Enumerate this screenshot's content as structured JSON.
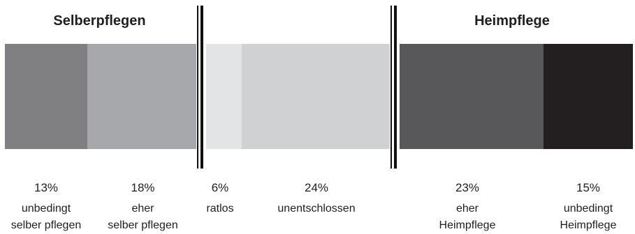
{
  "chart_data": {
    "type": "bar",
    "orientation": "horizontal-stacked",
    "groups": [
      {
        "title": "Selberpflegen",
        "segments": [
          0,
          1
        ]
      },
      {
        "title": "Heimpflege",
        "segments": [
          4,
          5
        ]
      }
    ],
    "segments": [
      {
        "value": 13,
        "label_pct": "13%",
        "label_lines": [
          "unbedingt",
          "selber pflegen"
        ],
        "color": "#808083"
      },
      {
        "value": 18,
        "label_pct": "18%",
        "label_lines": [
          "eher",
          "selber pflegen"
        ],
        "color": "#a7a8ab"
      },
      {
        "value": 6,
        "label_pct": "6%",
        "label_lines": [
          "ratlos"
        ],
        "color": "#e3e4e5"
      },
      {
        "value": 24,
        "label_pct": "24%",
        "label_lines": [
          "unentschlossen"
        ],
        "color": "#d0d1d3"
      },
      {
        "value": 23,
        "label_pct": "23%",
        "label_lines": [
          "eher",
          "Heimpflege"
        ],
        "color": "#58585a"
      },
      {
        "value": 15,
        "label_pct": "15%",
        "label_lines": [
          "unbedingt",
          "Heimpflege"
        ],
        "color": "#231f20"
      }
    ],
    "dividers_after_segments": [
      1,
      3
    ]
  }
}
